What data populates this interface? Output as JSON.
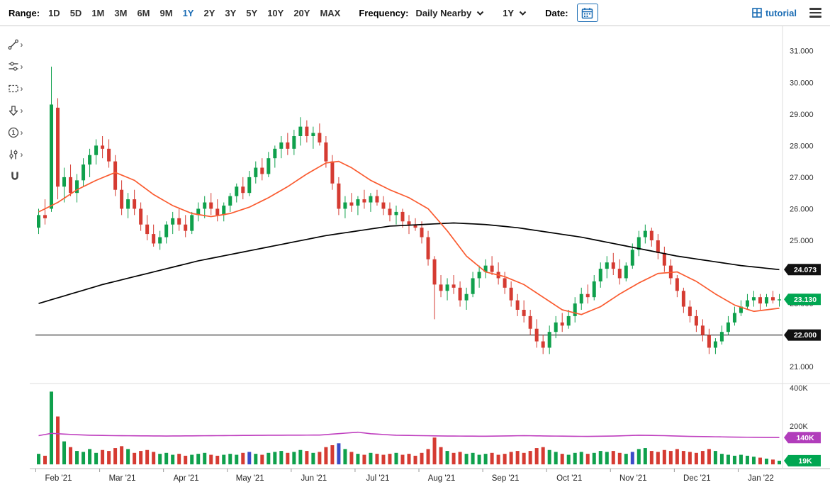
{
  "toolbar": {
    "range_label": "Range:",
    "ranges": [
      "1D",
      "5D",
      "1M",
      "3M",
      "6M",
      "9M",
      "1Y",
      "2Y",
      "3Y",
      "5Y",
      "10Y",
      "20Y",
      "MAX"
    ],
    "active_range": "1Y",
    "frequency_label": "Frequency:",
    "frequency_value": "Daily Nearby",
    "period_value": "1Y",
    "date_label": "Date:",
    "tutorial_label": "tutorial"
  },
  "drawing_tools": [
    "trendline",
    "indicators",
    "shapes",
    "arrow-annotation",
    "number-annotation",
    "layout",
    "magnet"
  ],
  "chart_data": {
    "type": "candlestick",
    "x_labels": [
      "Feb '21",
      "Mar '21",
      "Apr '21",
      "May '21",
      "Jun '21",
      "Jul '21",
      "Aug '21",
      "Sep '21",
      "Oct '21",
      "Nov '21",
      "Dec '21",
      "Jan '22"
    ],
    "month_start_indices": [
      0,
      10,
      20,
      30,
      40,
      50,
      60,
      70,
      80,
      90,
      100,
      110
    ],
    "y_ticks": [
      21,
      22,
      23,
      24,
      25,
      26,
      27,
      28,
      29,
      30,
      31
    ],
    "price_range": [
      20.6,
      31.6
    ],
    "candles": [
      [
        25.4,
        26.0,
        25.2,
        25.8
      ],
      [
        25.8,
        26.3,
        25.5,
        25.7
      ],
      [
        26.0,
        30.5,
        25.9,
        29.3
      ],
      [
        29.2,
        29.5,
        26.3,
        26.7
      ],
      [
        26.7,
        27.3,
        26.2,
        27.0
      ],
      [
        27.0,
        27.4,
        26.4,
        26.5
      ],
      [
        26.5,
        27.1,
        26.2,
        26.9
      ],
      [
        26.9,
        27.6,
        26.7,
        27.4
      ],
      [
        27.4,
        27.9,
        27.0,
        27.7
      ],
      [
        27.7,
        28.2,
        27.4,
        28.0
      ],
      [
        28.0,
        28.3,
        27.6,
        27.9
      ],
      [
        27.9,
        28.2,
        27.3,
        27.5
      ],
      [
        27.5,
        27.7,
        26.4,
        26.6
      ],
      [
        26.6,
        26.9,
        25.8,
        26.0
      ],
      [
        26.0,
        26.5,
        25.7,
        26.3
      ],
      [
        26.3,
        26.6,
        25.8,
        26.0
      ],
      [
        26.0,
        26.2,
        25.3,
        25.5
      ],
      [
        25.5,
        25.8,
        25.0,
        25.2
      ],
      [
        25.2,
        25.5,
        24.8,
        24.9
      ],
      [
        24.9,
        25.3,
        24.7,
        25.1
      ],
      [
        25.1,
        25.6,
        24.9,
        25.5
      ],
      [
        25.5,
        25.9,
        25.2,
        25.7
      ],
      [
        25.7,
        26.0,
        25.3,
        25.5
      ],
      [
        25.5,
        25.8,
        25.1,
        25.3
      ],
      [
        25.3,
        25.9,
        25.2,
        25.8
      ],
      [
        25.8,
        26.2,
        25.6,
        26.0
      ],
      [
        26.0,
        26.4,
        25.7,
        26.2
      ],
      [
        26.2,
        26.5,
        25.8,
        26.0
      ],
      [
        26.0,
        26.3,
        25.6,
        25.8
      ],
      [
        25.8,
        26.2,
        25.6,
        26.1
      ],
      [
        26.1,
        26.5,
        25.9,
        26.4
      ],
      [
        26.4,
        26.8,
        26.2,
        26.7
      ],
      [
        26.7,
        27.0,
        26.3,
        26.5
      ],
      [
        26.5,
        27.2,
        26.4,
        27.0
      ],
      [
        27.0,
        27.5,
        26.8,
        27.3
      ],
      [
        27.3,
        27.6,
        26.9,
        27.1
      ],
      [
        27.1,
        27.8,
        27.0,
        27.6
      ],
      [
        27.6,
        28.0,
        27.3,
        27.9
      ],
      [
        27.9,
        28.3,
        27.6,
        28.1
      ],
      [
        28.1,
        28.4,
        27.7,
        27.9
      ],
      [
        27.9,
        28.5,
        27.7,
        28.3
      ],
      [
        28.3,
        28.9,
        28.0,
        28.6
      ],
      [
        28.6,
        28.8,
        28.1,
        28.3
      ],
      [
        28.3,
        28.6,
        27.9,
        28.4
      ],
      [
        28.4,
        28.7,
        28.0,
        28.1
      ],
      [
        28.1,
        28.3,
        27.3,
        27.5
      ],
      [
        27.5,
        27.7,
        26.6,
        26.8
      ],
      [
        26.8,
        27.0,
        25.8,
        26.0
      ],
      [
        26.0,
        26.4,
        25.7,
        26.2
      ],
      [
        26.2,
        26.5,
        25.9,
        26.1
      ],
      [
        26.1,
        26.4,
        25.8,
        26.3
      ],
      [
        26.3,
        26.6,
        26.0,
        26.2
      ],
      [
        26.2,
        26.5,
        25.9,
        26.4
      ],
      [
        26.4,
        26.6,
        26.1,
        26.2
      ],
      [
        26.2,
        26.4,
        25.8,
        26.0
      ],
      [
        26.0,
        26.2,
        25.6,
        25.8
      ],
      [
        25.8,
        26.1,
        25.5,
        25.9
      ],
      [
        25.9,
        26.0,
        25.4,
        25.6
      ],
      [
        25.6,
        25.8,
        25.2,
        25.5
      ],
      [
        25.5,
        25.7,
        25.3,
        25.4
      ],
      [
        25.4,
        25.6,
        24.9,
        25.1
      ],
      [
        25.1,
        25.3,
        24.2,
        24.4
      ],
      [
        24.4,
        24.5,
        22.5,
        23.6
      ],
      [
        23.6,
        23.9,
        23.2,
        23.4
      ],
      [
        23.4,
        23.8,
        23.1,
        23.6
      ],
      [
        23.6,
        23.9,
        23.3,
        23.5
      ],
      [
        23.5,
        23.7,
        22.9,
        23.1
      ],
      [
        23.1,
        23.5,
        22.8,
        23.3
      ],
      [
        23.3,
        24.0,
        23.2,
        23.8
      ],
      [
        23.8,
        24.2,
        23.5,
        24.0
      ],
      [
        24.0,
        24.4,
        23.8,
        24.2
      ],
      [
        24.2,
        24.5,
        23.9,
        24.0
      ],
      [
        24.0,
        24.3,
        23.6,
        23.8
      ],
      [
        23.8,
        24.0,
        23.3,
        23.5
      ],
      [
        23.5,
        23.7,
        22.9,
        23.1
      ],
      [
        23.1,
        23.3,
        22.6,
        22.8
      ],
      [
        22.8,
        23.1,
        22.4,
        22.6
      ],
      [
        22.6,
        22.8,
        22.0,
        22.2
      ],
      [
        22.2,
        22.5,
        21.6,
        21.8
      ],
      [
        21.8,
        22.0,
        21.4,
        21.6
      ],
      [
        21.6,
        22.3,
        21.4,
        22.1
      ],
      [
        22.1,
        22.6,
        21.9,
        22.4
      ],
      [
        22.4,
        22.7,
        22.1,
        22.3
      ],
      [
        22.3,
        22.8,
        22.2,
        22.6
      ],
      [
        22.6,
        23.2,
        22.4,
        23.0
      ],
      [
        23.0,
        23.5,
        22.8,
        23.3
      ],
      [
        23.3,
        23.6,
        23.0,
        23.2
      ],
      [
        23.2,
        23.9,
        23.1,
        23.7
      ],
      [
        23.7,
        24.3,
        23.5,
        24.1
      ],
      [
        24.1,
        24.5,
        23.8,
        24.3
      ],
      [
        24.3,
        24.6,
        23.9,
        24.1
      ],
      [
        24.1,
        24.4,
        23.6,
        23.8
      ],
      [
        23.8,
        24.3,
        23.7,
        24.2
      ],
      [
        24.2,
        24.9,
        24.1,
        24.7
      ],
      [
        24.7,
        25.3,
        24.5,
        25.1
      ],
      [
        25.1,
        25.5,
        24.9,
        25.3
      ],
      [
        25.3,
        25.4,
        24.8,
        25.0
      ],
      [
        25.0,
        25.2,
        24.4,
        24.6
      ],
      [
        24.6,
        24.8,
        24.0,
        24.2
      ],
      [
        24.2,
        24.4,
        23.6,
        23.8
      ],
      [
        23.8,
        23.9,
        23.2,
        23.4
      ],
      [
        23.4,
        23.5,
        22.7,
        22.9
      ],
      [
        22.9,
        23.1,
        22.4,
        22.6
      ],
      [
        22.6,
        22.8,
        22.1,
        22.3
      ],
      [
        22.3,
        22.5,
        21.8,
        22.0
      ],
      [
        22.0,
        22.2,
        21.4,
        21.6
      ],
      [
        21.6,
        21.9,
        21.4,
        21.8
      ],
      [
        21.8,
        22.3,
        21.7,
        22.1
      ],
      [
        22.1,
        22.6,
        22.0,
        22.4
      ],
      [
        22.4,
        22.9,
        22.3,
        22.7
      ],
      [
        22.7,
        23.1,
        22.6,
        22.9
      ],
      [
        22.9,
        23.3,
        22.8,
        23.1
      ],
      [
        23.1,
        23.4,
        22.9,
        23.2
      ],
      [
        23.2,
        23.3,
        22.8,
        23.0
      ],
      [
        23.0,
        23.3,
        22.9,
        23.2
      ],
      [
        23.2,
        23.4,
        23.0,
        23.1
      ],
      [
        23.1,
        23.3,
        22.9,
        23.13
      ]
    ],
    "volumes": [
      55,
      45,
      380,
      250,
      120,
      90,
      70,
      65,
      80,
      60,
      75,
      70,
      85,
      95,
      80,
      60,
      70,
      75,
      65,
      55,
      60,
      50,
      55,
      45,
      50,
      55,
      60,
      50,
      45,
      50,
      55,
      50,
      60,
      65,
      55,
      50,
      60,
      65,
      70,
      60,
      65,
      75,
      70,
      60,
      65,
      90,
      100,
      110,
      80,
      65,
      55,
      50,
      60,
      55,
      50,
      55,
      60,
      50,
      55,
      45,
      60,
      80,
      140,
      90,
      70,
      60,
      65,
      55,
      60,
      50,
      55,
      60,
      50,
      55,
      65,
      70,
      60,
      70,
      85,
      90,
      75,
      65,
      55,
      50,
      60,
      65,
      55,
      60,
      70,
      65,
      70,
      60,
      55,
      65,
      80,
      85,
      70,
      65,
      75,
      70,
      80,
      70,
      65,
      60,
      70,
      80,
      70,
      55,
      50,
      45,
      50,
      45,
      40,
      35,
      30,
      25,
      19
    ],
    "roll_indices": [
      33,
      47,
      93
    ],
    "volume_ticks": [
      {
        "label": "400K",
        "value": 400
      },
      {
        "label": "200K",
        "value": 200
      }
    ],
    "ma_black": {
      "name": "long-term moving average",
      "last_value_label": "24.073",
      "anchors": [
        [
          0,
          23.0
        ],
        [
          5,
          23.3
        ],
        [
          10,
          23.6
        ],
        [
          15,
          23.85
        ],
        [
          20,
          24.1
        ],
        [
          25,
          24.35
        ],
        [
          30,
          24.55
        ],
        [
          35,
          24.75
        ],
        [
          40,
          24.95
        ],
        [
          45,
          25.15
        ],
        [
          50,
          25.3
        ],
        [
          55,
          25.45
        ],
        [
          60,
          25.5
        ],
        [
          65,
          25.55
        ],
        [
          70,
          25.5
        ],
        [
          75,
          25.4
        ],
        [
          80,
          25.25
        ],
        [
          85,
          25.1
        ],
        [
          90,
          24.9
        ],
        [
          95,
          24.7
        ],
        [
          100,
          24.5
        ],
        [
          105,
          24.35
        ],
        [
          110,
          24.2
        ],
        [
          116,
          24.073
        ]
      ]
    },
    "ma_red": {
      "name": "short-term moving average",
      "anchors": [
        [
          0,
          25.9
        ],
        [
          3,
          26.2
        ],
        [
          6,
          26.6
        ],
        [
          9,
          26.9
        ],
        [
          12,
          27.15
        ],
        [
          15,
          26.9
        ],
        [
          18,
          26.45
        ],
        [
          21,
          26.1
        ],
        [
          24,
          25.85
        ],
        [
          27,
          25.75
        ],
        [
          30,
          25.85
        ],
        [
          33,
          26.05
        ],
        [
          36,
          26.35
        ],
        [
          39,
          26.7
        ],
        [
          42,
          27.1
        ],
        [
          45,
          27.45
        ],
        [
          47,
          27.5
        ],
        [
          49,
          27.3
        ],
        [
          52,
          26.9
        ],
        [
          55,
          26.6
        ],
        [
          58,
          26.35
        ],
        [
          61,
          26.0
        ],
        [
          64,
          25.3
        ],
        [
          67,
          24.5
        ],
        [
          70,
          24.0
        ],
        [
          73,
          23.85
        ],
        [
          76,
          23.6
        ],
        [
          79,
          23.2
        ],
        [
          82,
          22.8
        ],
        [
          85,
          22.65
        ],
        [
          88,
          22.9
        ],
        [
          91,
          23.3
        ],
        [
          94,
          23.65
        ],
        [
          97,
          23.95
        ],
        [
          100,
          24.0
        ],
        [
          103,
          23.7
        ],
        [
          106,
          23.3
        ],
        [
          109,
          22.95
        ],
        [
          112,
          22.75
        ],
        [
          116,
          22.85
        ]
      ]
    },
    "open_interest": {
      "name": "open interest",
      "last_value_label": "140K",
      "anchors": [
        [
          0,
          150
        ],
        [
          2,
          162
        ],
        [
          4,
          158
        ],
        [
          8,
          152
        ],
        [
          12,
          150
        ],
        [
          20,
          148
        ],
        [
          28,
          150
        ],
        [
          36,
          152
        ],
        [
          44,
          153
        ],
        [
          50,
          168
        ],
        [
          52,
          160
        ],
        [
          56,
          152
        ],
        [
          60,
          150
        ],
        [
          64,
          148
        ],
        [
          70,
          147
        ],
        [
          76,
          150
        ],
        [
          80,
          148
        ],
        [
          86,
          146
        ],
        [
          90,
          148
        ],
        [
          94,
          152
        ],
        [
          98,
          150
        ],
        [
          102,
          146
        ],
        [
          106,
          144
        ],
        [
          110,
          142
        ],
        [
          116,
          140
        ]
      ]
    },
    "hline": {
      "value": 22.0,
      "label": "22.000"
    },
    "price_badges": [
      {
        "label": "24.073",
        "value": 24.073,
        "color": "#111111"
      },
      {
        "label": "23.130",
        "value": 23.13,
        "color": "#00a651"
      },
      {
        "label": "22.000",
        "value": 22.0,
        "color": "#111111"
      }
    ],
    "volume_badges": [
      {
        "label": "140K",
        "value": 140,
        "color": "#b13dbb"
      },
      {
        "label": "19K",
        "value": 19,
        "color": "#00a651"
      }
    ],
    "colors": {
      "up": "#0fa04c",
      "down": "#d53b32",
      "roll": "#3b4bc8",
      "ma_red": "#fa5b30",
      "ma_black": "#000000",
      "oi": "#bf3fbf",
      "accent_blue": "#1a6cb4"
    }
  }
}
